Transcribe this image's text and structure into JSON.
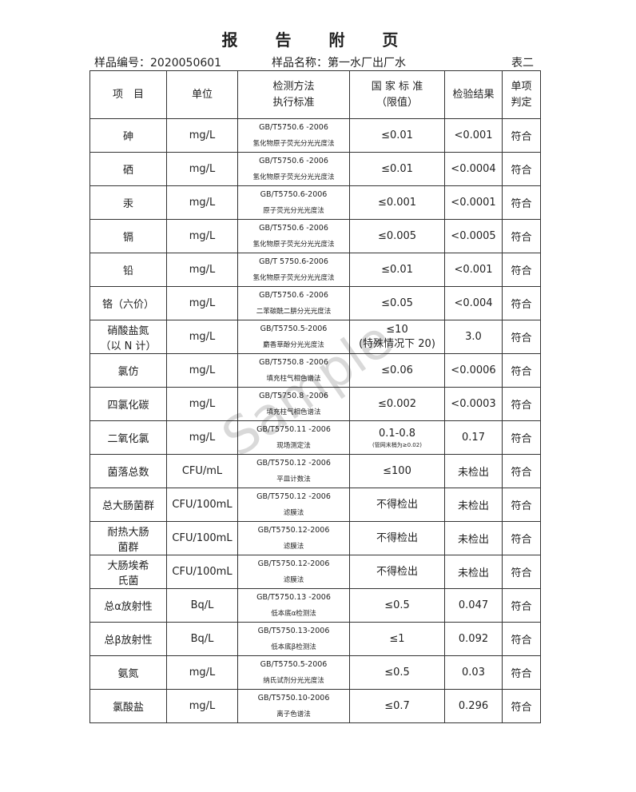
{
  "title": "报 告 附 页",
  "sample_no": "样品编号：2020050601",
  "sample_name": "样品名称：第一水厂出厂水",
  "table_id": "表二",
  "headers": [
    "项　目",
    "单位",
    "检测方法\n执行标准",
    "国 家 标 准\n（限值）",
    "检验结果",
    "单项\n判定"
  ],
  "rows": [
    {
      "item": "砷",
      "unit": "mg/L",
      "std": "GB/T5750.6 -2006",
      "method": "氢化物原子荧光分光光度法",
      "limit": "≤0.01",
      "note": "",
      "result": "<0.001",
      "judge": "符合"
    },
    {
      "item": "硒",
      "unit": "mg/L",
      "std": "GB/T5750.6 -2006",
      "method": "氢化物原子荧光分光光度法",
      "limit": "≤0.01",
      "note": "",
      "result": "<0.0004",
      "judge": "符合"
    },
    {
      "item": "汞",
      "unit": "mg/L",
      "std": "GB/T5750.6-2006",
      "method": "原子荧光分光光度法",
      "limit": "≤0.001",
      "note": "",
      "result": "<0.0001",
      "judge": "符合"
    },
    {
      "item": "镉",
      "unit": "mg/L",
      "std": "GB/T5750.6 -2006",
      "method": "氢化物原子荧光分光光度法",
      "limit": "≤0.005",
      "note": "",
      "result": "<0.0005",
      "judge": "符合"
    },
    {
      "item": "铅",
      "unit": "mg/L",
      "std": "GB/T 5750.6-2006",
      "method": "氢化物原子荧光分光光度法",
      "limit": "≤0.01",
      "note": "",
      "result": "<0.001",
      "judge": "符合"
    },
    {
      "item": "铬（六价）",
      "unit": "mg/L",
      "std": "GB/T5750.6 -2006",
      "method": "二苯碳酰二肼分光光度法",
      "limit": "≤0.05",
      "note": "",
      "result": "<0.004",
      "judge": "符合"
    },
    {
      "item": "硝酸盐氮\n（以 N 计）",
      "unit": "mg/L",
      "std": "GB/T5750.5-2006",
      "method": "麝香草酚分光光度法",
      "limit": "≤10\n(特殊情况下 20)",
      "note": "",
      "result": "3.0",
      "judge": "符合"
    },
    {
      "item": "氯仿",
      "unit": "mg/L",
      "std": "GB/T5750.8 -2006",
      "method": "填充柱气相色谱法",
      "limit": "≤0.06",
      "note": "",
      "result": "<0.0006",
      "judge": "符合"
    },
    {
      "item": "四氯化碳",
      "unit": "mg/L",
      "std": "GB/T5750.8 -2006",
      "method": "填充柱气相色谱法",
      "limit": "≤0.002",
      "note": "",
      "result": "<0.0003",
      "judge": "符合"
    },
    {
      "item": "二氧化氯",
      "unit": "mg/L",
      "std": "GB/T5750.11 -2006",
      "method": "现场测定法",
      "limit": "0.1-0.8",
      "note": "(管网末梢为≥0.02)",
      "result": "0.17",
      "judge": "符合"
    },
    {
      "item": "菌落总数",
      "unit": "CFU/mL",
      "std": "GB/T5750.12 -2006",
      "method": "平皿计数法",
      "limit": "≤100",
      "note": "",
      "result": "未检出",
      "judge": "符合"
    },
    {
      "item": "总大肠菌群",
      "unit": "CFU/100mL",
      "std": "GB/T5750.12 -2006",
      "method": "滤膜法",
      "limit": "不得检出",
      "note": "",
      "result": "未检出",
      "judge": "符合"
    },
    {
      "item": "耐热大肠\n菌群",
      "unit": "CFU/100mL",
      "std": "GB/T5750.12-2006",
      "method": "滤膜法",
      "limit": "不得检出",
      "note": "",
      "result": "未检出",
      "judge": "符合"
    },
    {
      "item": "大肠埃希\n氏菌",
      "unit": "CFU/100mL",
      "std": "GB/T5750.12-2006",
      "method": "滤膜法",
      "limit": "不得检出",
      "note": "",
      "result": "未检出",
      "judge": "符合"
    },
    {
      "item": "总α放射性",
      "unit": "Bq/L",
      "std": "GB/T5750.13 -2006",
      "method": "低本底α检测法",
      "limit": "≤0.5",
      "note": "",
      "result": "0.047",
      "judge": "符合"
    },
    {
      "item": "总β放射性",
      "unit": "Bq/L",
      "std": "GB/T5750.13-2006",
      "method": "低本底β检测法",
      "limit": "≤1",
      "note": "",
      "result": "0.092",
      "judge": "符合"
    },
    {
      "item": "氨氮",
      "unit": "mg/L",
      "std": "GB/T5750.5-2006",
      "method": "纳氏试剂分光光度法",
      "limit": "≤0.5",
      "note": "",
      "result": "0.03",
      "judge": "符合"
    },
    {
      "item": "氯酸盐",
      "unit": "mg/L",
      "std": "GB/T5750.10-2006",
      "method": "离子色谱法",
      "limit": "≤0.7",
      "note": "",
      "result": "0.296",
      "judge": "符合"
    }
  ],
  "watermark": "Sample"
}
